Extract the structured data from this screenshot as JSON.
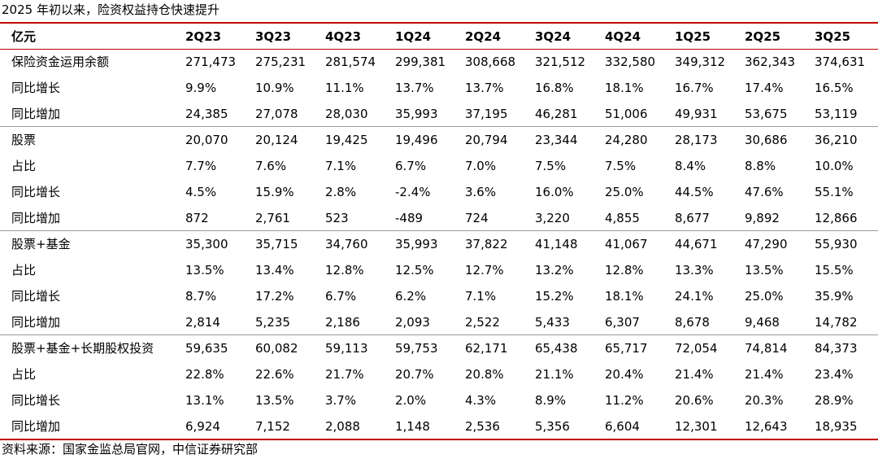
{
  "title": "2025 年初以来，险资权益持仓快速提升",
  "source": "资料来源：国家金监总局官网，中信证券研究部",
  "table": {
    "unit": "亿元",
    "columns": [
      "2Q23",
      "3Q23",
      "4Q23",
      "1Q24",
      "2Q24",
      "3Q24",
      "4Q24",
      "1Q25",
      "2Q25",
      "3Q25"
    ],
    "rows": [
      {
        "label": "保险资金运用余额",
        "values": [
          "271,473",
          "275,231",
          "281,574",
          "299,381",
          "308,668",
          "321,512",
          "332,580",
          "349,312",
          "362,343",
          "374,631"
        ]
      },
      {
        "label": "同比增长",
        "values": [
          "9.9%",
          "10.9%",
          "11.1%",
          "13.7%",
          "13.7%",
          "16.8%",
          "18.1%",
          "16.7%",
          "17.4%",
          "16.5%"
        ]
      },
      {
        "label": "同比增加",
        "values": [
          "24,385",
          "27,078",
          "28,030",
          "35,993",
          "37,195",
          "46,281",
          "51,006",
          "49,931",
          "53,675",
          "53,119"
        ]
      },
      {
        "label": "股票",
        "values": [
          "20,070",
          "20,124",
          "19,425",
          "19,496",
          "20,794",
          "23,344",
          "24,280",
          "28,173",
          "30,686",
          "36,210"
        ]
      },
      {
        "label": "占比",
        "values": [
          "7.7%",
          "7.6%",
          "7.1%",
          "6.7%",
          "7.0%",
          "7.5%",
          "7.5%",
          "8.4%",
          "8.8%",
          "10.0%"
        ]
      },
      {
        "label": "同比增长",
        "values": [
          "4.5%",
          "15.9%",
          "2.8%",
          "-2.4%",
          "3.6%",
          "16.0%",
          "25.0%",
          "44.5%",
          "47.6%",
          "55.1%"
        ]
      },
      {
        "label": "同比增加",
        "values": [
          "872",
          "2,761",
          "523",
          "-489",
          "724",
          "3,220",
          "4,855",
          "8,677",
          "9,892",
          "12,866"
        ]
      },
      {
        "label": "股票+基金",
        "values": [
          "35,300",
          "35,715",
          "34,760",
          "35,993",
          "37,822",
          "41,148",
          "41,067",
          "44,671",
          "47,290",
          "55,930"
        ]
      },
      {
        "label": "占比",
        "values": [
          "13.5%",
          "13.4%",
          "12.8%",
          "12.5%",
          "12.7%",
          "13.2%",
          "12.8%",
          "13.3%",
          "13.5%",
          "15.5%"
        ]
      },
      {
        "label": "同比增长",
        "values": [
          "8.7%",
          "17.2%",
          "6.7%",
          "6.2%",
          "7.1%",
          "15.2%",
          "18.1%",
          "24.1%",
          "25.0%",
          "35.9%"
        ]
      },
      {
        "label": "同比增加",
        "values": [
          "2,814",
          "5,235",
          "2,186",
          "2,093",
          "2,522",
          "5,433",
          "6,307",
          "8,678",
          "9,468",
          "14,782"
        ]
      },
      {
        "label": "股票+基金+长期股权投资",
        "values": [
          "59,635",
          "60,082",
          "59,113",
          "59,753",
          "62,171",
          "65,438",
          "65,717",
          "72,054",
          "74,814",
          "84,373"
        ]
      },
      {
        "label": "占比",
        "values": [
          "22.8%",
          "22.6%",
          "21.7%",
          "20.7%",
          "20.8%",
          "21.1%",
          "20.4%",
          "21.4%",
          "21.4%",
          "23.4%"
        ]
      },
      {
        "label": "同比增长",
        "values": [
          "13.1%",
          "13.5%",
          "3.7%",
          "2.0%",
          "4.3%",
          "8.9%",
          "11.2%",
          "20.6%",
          "20.3%",
          "28.9%"
        ]
      },
      {
        "label": "同比增加",
        "values": [
          "6,924",
          "7,152",
          "2,088",
          "1,148",
          "2,536",
          "5,356",
          "6,604",
          "12,301",
          "12,643",
          "18,935"
        ]
      }
    ]
  }
}
